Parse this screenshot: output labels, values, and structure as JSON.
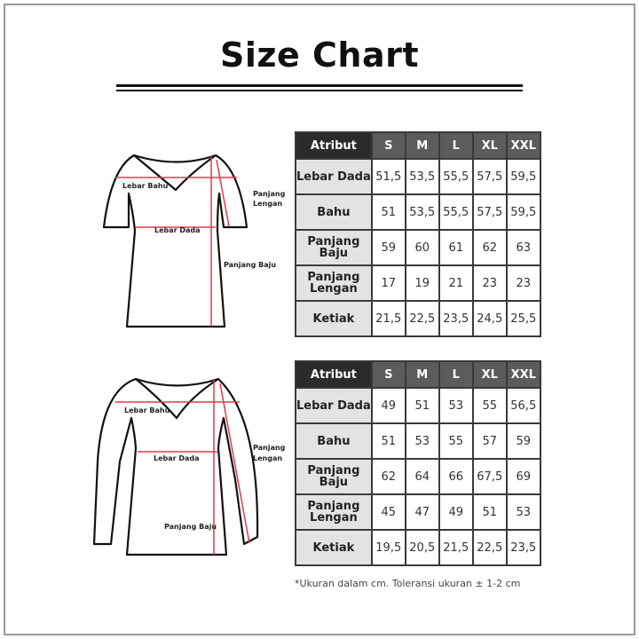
{
  "title": "Size Chart",
  "colors": {
    "measure_line": "#e03a4a",
    "header_dark": "#2b2b2b",
    "header": "#5c5c5c",
    "attr_bg": "#e3e3e3"
  },
  "diagram_labels": {
    "lebar_bahu": "Lebar Bahu",
    "lebar_dada": "Lebar Dada",
    "panjang_baju": "Panjang Baju",
    "panjang_lengan_1": "Panjang",
    "panjang_lengan_2": "Lengan"
  },
  "tables": [
    {
      "headers": [
        "Atribut",
        "S",
        "M",
        "L",
        "XL",
        "XXL"
      ],
      "rows": [
        {
          "label": "Lebar Dada",
          "values": [
            "51,5",
            "53,5",
            "55,5",
            "57,5",
            "59,5"
          ]
        },
        {
          "label": "Bahu",
          "values": [
            "51",
            "53,5",
            "55,5",
            "57,5",
            "59,5"
          ]
        },
        {
          "label": "Panjang Baju",
          "values": [
            "59",
            "60",
            "61",
            "62",
            "63"
          ]
        },
        {
          "label": "Panjang Lengan",
          "values": [
            "17",
            "19",
            "21",
            "23",
            "23"
          ]
        },
        {
          "label": "Ketiak",
          "values": [
            "21,5",
            "22,5",
            "23,5",
            "24,5",
            "25,5"
          ]
        }
      ]
    },
    {
      "headers": [
        "Atribut",
        "S",
        "M",
        "L",
        "XL",
        "XXL"
      ],
      "rows": [
        {
          "label": "Lebar Dada",
          "values": [
            "49",
            "51",
            "53",
            "55",
            "56,5"
          ]
        },
        {
          "label": "Bahu",
          "values": [
            "51",
            "53",
            "55",
            "57",
            "59"
          ]
        },
        {
          "label": "Panjang Baju",
          "values": [
            "62",
            "64",
            "66",
            "67,5",
            "69"
          ]
        },
        {
          "label": "Panjang Lengan",
          "values": [
            "45",
            "47",
            "49",
            "51",
            "53"
          ]
        },
        {
          "label": "Ketiak",
          "values": [
            "19,5",
            "20,5",
            "21,5",
            "22,5",
            "23,5"
          ]
        }
      ]
    }
  ],
  "note": "*Ukuran dalam cm. Toleransi ukuran ± 1-2 cm"
}
